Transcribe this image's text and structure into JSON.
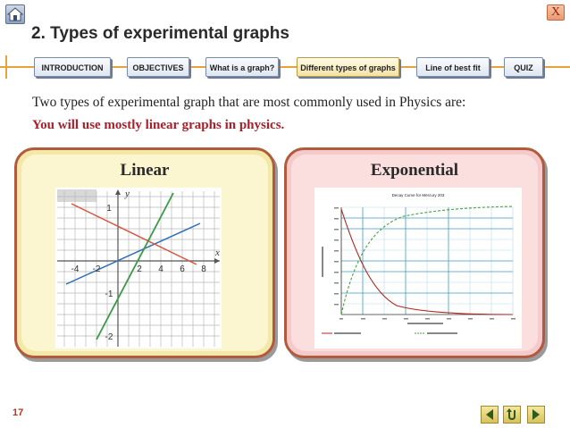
{
  "header": {
    "title": "2. Types of experimental graphs",
    "close_label": "X"
  },
  "nav": {
    "tabs": [
      {
        "label": "INTRODUCTION"
      },
      {
        "label": "OBJECTIVES"
      },
      {
        "label": "What is a graph?"
      },
      {
        "label": "Different types of graphs"
      },
      {
        "label": "Line of best fit"
      },
      {
        "label": "QUIZ"
      }
    ],
    "active_index": 3
  },
  "content": {
    "intro": "Two types of experimental graph that are most commonly used in Physics are:",
    "emphasis": "You will use mostly linear graphs in physics."
  },
  "panels": {
    "linear": {
      "title": "Linear",
      "axis_x_label": "x",
      "axis_y_label": "y",
      "x_ticks": [
        "-4",
        "-2",
        "2",
        "4",
        "6",
        "8"
      ],
      "y_ticks": [
        "1",
        "-1",
        "-2"
      ]
    },
    "exponential": {
      "title": "Exponential",
      "chart_title": "Decay Curve for Mercury 203"
    }
  },
  "footer": {
    "page_number": "17"
  },
  "colors": {
    "accent_orange": "#e8a23a",
    "emphasis_red": "#a8202a",
    "panel_border": "#b25a3c",
    "linear_bg": "#f3e8a8",
    "exponential_bg": "#f6caca"
  },
  "icons": [
    "home-icon",
    "close-icon",
    "arrow-left-icon",
    "return-icon",
    "arrow-right-icon"
  ]
}
